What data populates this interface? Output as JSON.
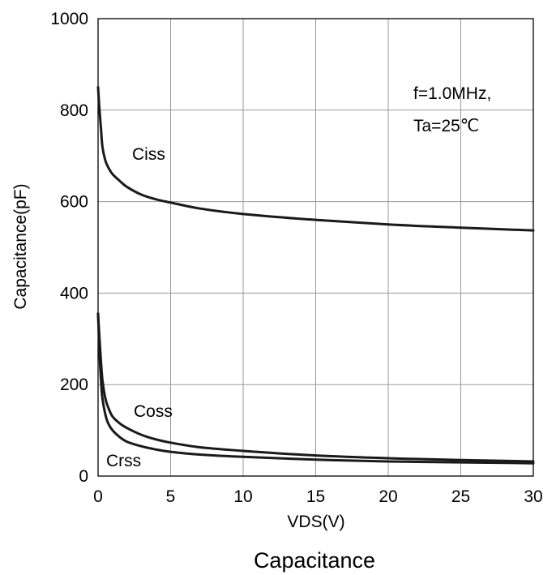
{
  "chart_data": {
    "type": "line",
    "title": "",
    "xlabel": "VDS(V)",
    "ylabel": "Capacitance(pF)",
    "caption": "Capacitance",
    "xlim": [
      0,
      30
    ],
    "ylim": [
      0,
      1000
    ],
    "xticks": [
      "0",
      "5",
      "10",
      "15",
      "20",
      "25",
      "30"
    ],
    "yticks": [
      "0",
      "200",
      "400",
      "600",
      "800",
      "1000"
    ],
    "grid": true,
    "annotations": [
      "f=1.0MHz,",
      "Ta=25℃"
    ],
    "series": [
      {
        "name": "Ciss",
        "x": [
          0,
          0.1,
          0.2,
          0.3,
          0.5,
          0.7,
          1,
          1.5,
          2,
          3,
          4,
          5,
          7,
          10,
          15,
          20,
          25,
          30
        ],
        "y": [
          850,
          800,
          760,
          720,
          690,
          675,
          660,
          645,
          632,
          615,
          605,
          598,
          585,
          573,
          560,
          550,
          543,
          537
        ]
      },
      {
        "name": "Coss",
        "x": [
          0,
          0.1,
          0.2,
          0.3,
          0.5,
          0.7,
          1,
          1.5,
          2,
          3,
          4,
          5,
          7,
          10,
          15,
          20,
          25,
          30
        ],
        "y": [
          355,
          300,
          250,
          210,
          170,
          150,
          130,
          115,
          105,
          90,
          80,
          73,
          63,
          55,
          45,
          39,
          35,
          32
        ]
      },
      {
        "name": "Crss",
        "x": [
          0,
          0.1,
          0.2,
          0.3,
          0.5,
          0.7,
          1,
          1.5,
          2,
          3,
          4,
          5,
          7,
          10,
          15,
          20,
          25,
          30
        ],
        "y": [
          355,
          270,
          210,
          170,
          135,
          115,
          100,
          85,
          75,
          65,
          58,
          53,
          47,
          42,
          36,
          32,
          30,
          28
        ]
      }
    ]
  }
}
